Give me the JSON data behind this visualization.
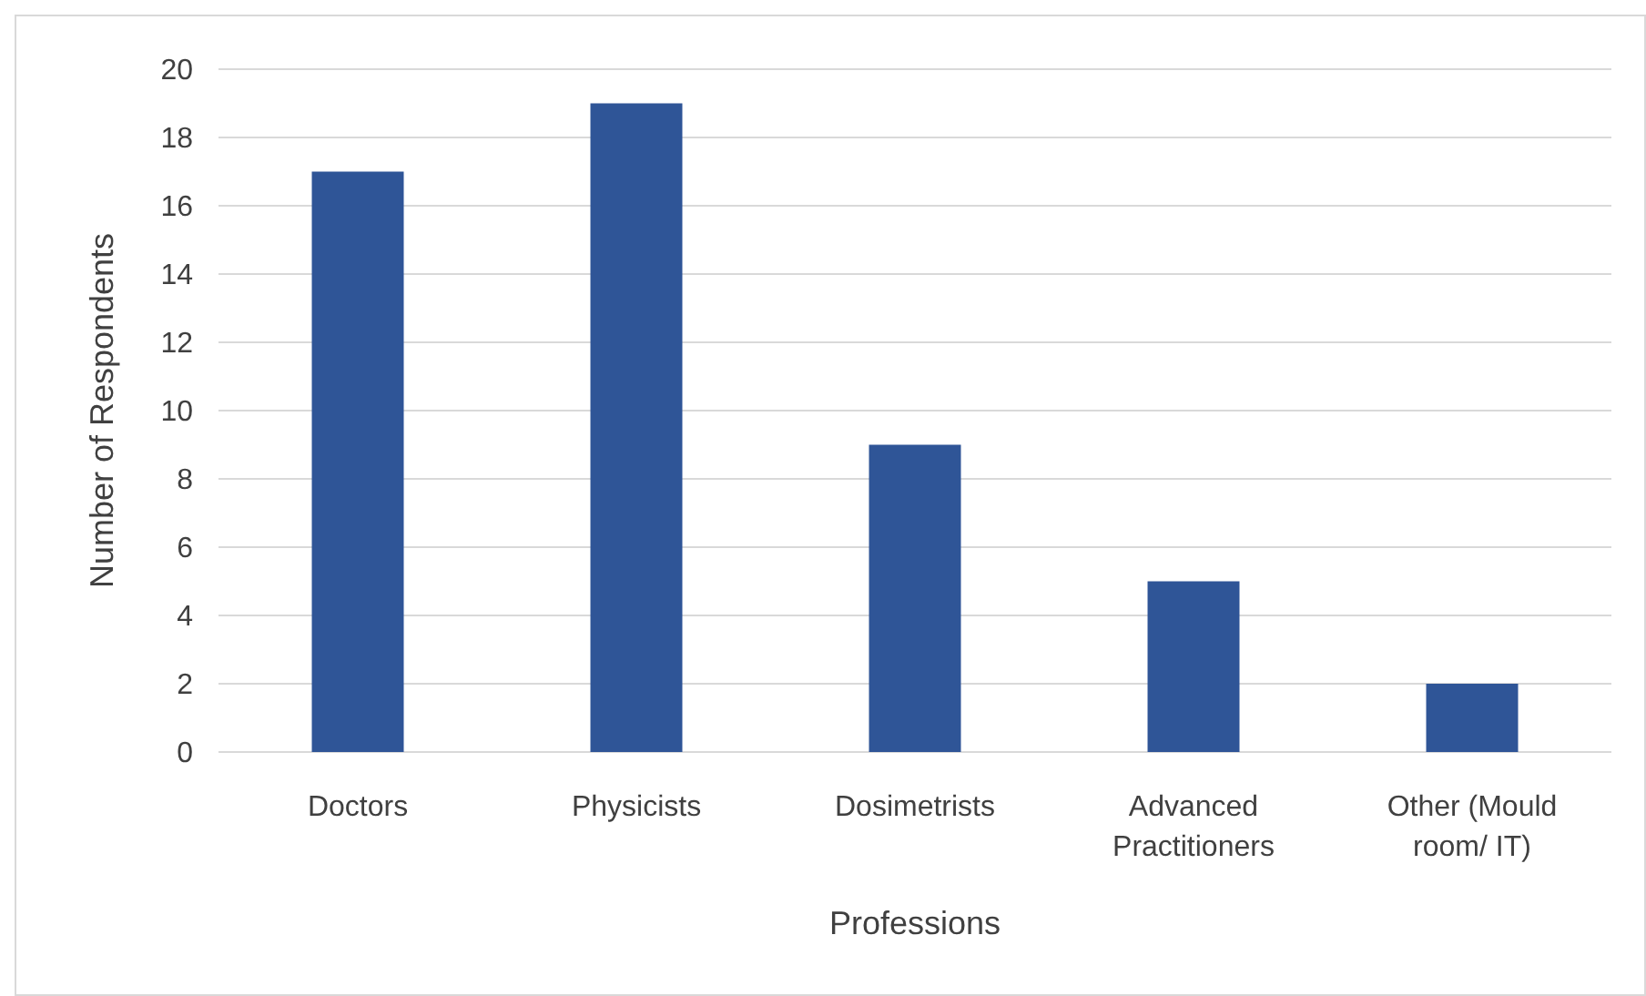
{
  "chart_data": {
    "type": "bar",
    "xlabel": "Professions",
    "ylabel": "Number of Respondents",
    "categories": [
      "Doctors",
      "Physicists",
      "Dosimetrists",
      "Advanced Practitioners",
      "Other (Mould room/ IT)"
    ],
    "values": [
      17,
      19,
      9,
      5,
      2
    ],
    "color": "#2f5597",
    "ylim": [
      0,
      20
    ],
    "yticks": [
      0,
      2,
      4,
      6,
      8,
      10,
      12,
      14,
      16,
      18,
      20
    ],
    "grid": "y"
  }
}
